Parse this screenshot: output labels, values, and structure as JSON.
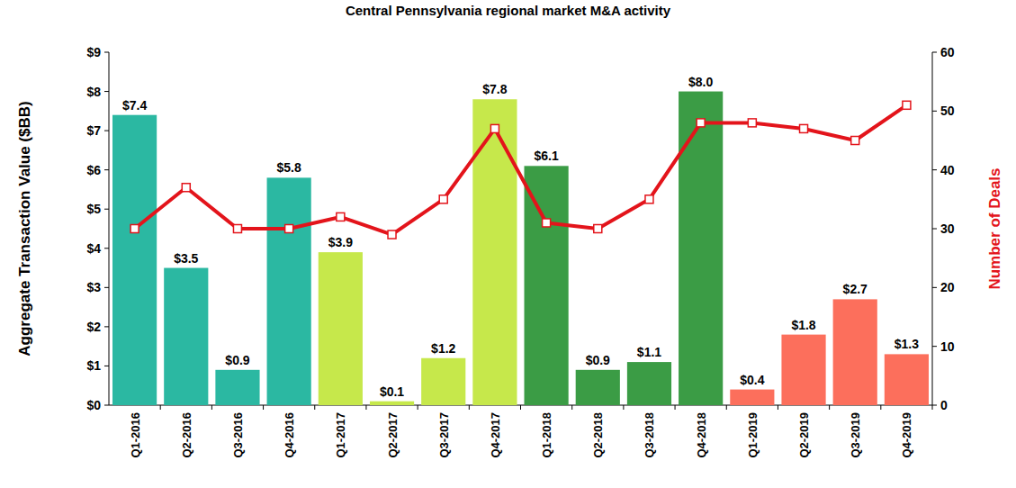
{
  "chart_data": {
    "type": "bar",
    "title": "Central Pennsylvania regional market M&A activity",
    "ylabel": "Aggregate Transaction Value ($BB)",
    "y2label": "Number of Deals",
    "categories": [
      "Q1-2016",
      "Q2-2016",
      "Q3-2016",
      "Q4-2016",
      "Q1-2017",
      "Q2-2017",
      "Q3-2017",
      "Q4-2017",
      "Q1-2018",
      "Q2-2018",
      "Q3-2018",
      "Q4-2018",
      "Q1-2019",
      "Q2-2019",
      "Q3-2019",
      "Q4-2019"
    ],
    "ylim": [
      0,
      9
    ],
    "yticks": [
      {
        "value": 0,
        "label": "$0"
      },
      {
        "value": 1,
        "label": "$1"
      },
      {
        "value": 2,
        "label": "$2"
      },
      {
        "value": 3,
        "label": "$3"
      },
      {
        "value": 4,
        "label": "$4"
      },
      {
        "value": 5,
        "label": "$5"
      },
      {
        "value": 6,
        "label": "$6"
      },
      {
        "value": 7,
        "label": "$7"
      },
      {
        "value": 8,
        "label": "$8"
      },
      {
        "value": 9,
        "label": "$9"
      }
    ],
    "y2lim": [
      0,
      60
    ],
    "y2ticks": [
      0,
      10,
      20,
      30,
      40,
      50,
      60
    ],
    "grid": false,
    "series": [
      {
        "type": "bar",
        "values": [
          7.4,
          3.5,
          0.9,
          5.8,
          3.9,
          0.1,
          1.2,
          7.8,
          6.1,
          0.9,
          1.1,
          8.0,
          0.4,
          1.8,
          2.7,
          1.3
        ],
        "value_labels": [
          "$7.4",
          "$3.5",
          "$0.9",
          "$5.8",
          "$3.9",
          "$0.1",
          "$1.2",
          "$7.8",
          "$6.1",
          "$0.9",
          "$1.1",
          "$8.0",
          "$0.4",
          "$1.8",
          "$2.7",
          "$1.3"
        ],
        "data_labels": true,
        "colors": [
          "#2bb8a2",
          "#2bb8a2",
          "#2bb8a2",
          "#2bb8a2",
          "#c6e84b",
          "#c6e84b",
          "#c6e84b",
          "#c6e84b",
          "#3b9c45",
          "#3b9c45",
          "#3b9c45",
          "#3b9c45",
          "#fc6f5c",
          "#fc6f5c",
          "#fc6f5c",
          "#fc6f5c"
        ]
      },
      {
        "type": "line",
        "axis": "y2",
        "color": "#e3141b",
        "marker": "square",
        "values": [
          30,
          37,
          30,
          30,
          32,
          29,
          35,
          47,
          31,
          30,
          35,
          48,
          48,
          47,
          45,
          51
        ]
      }
    ]
  }
}
